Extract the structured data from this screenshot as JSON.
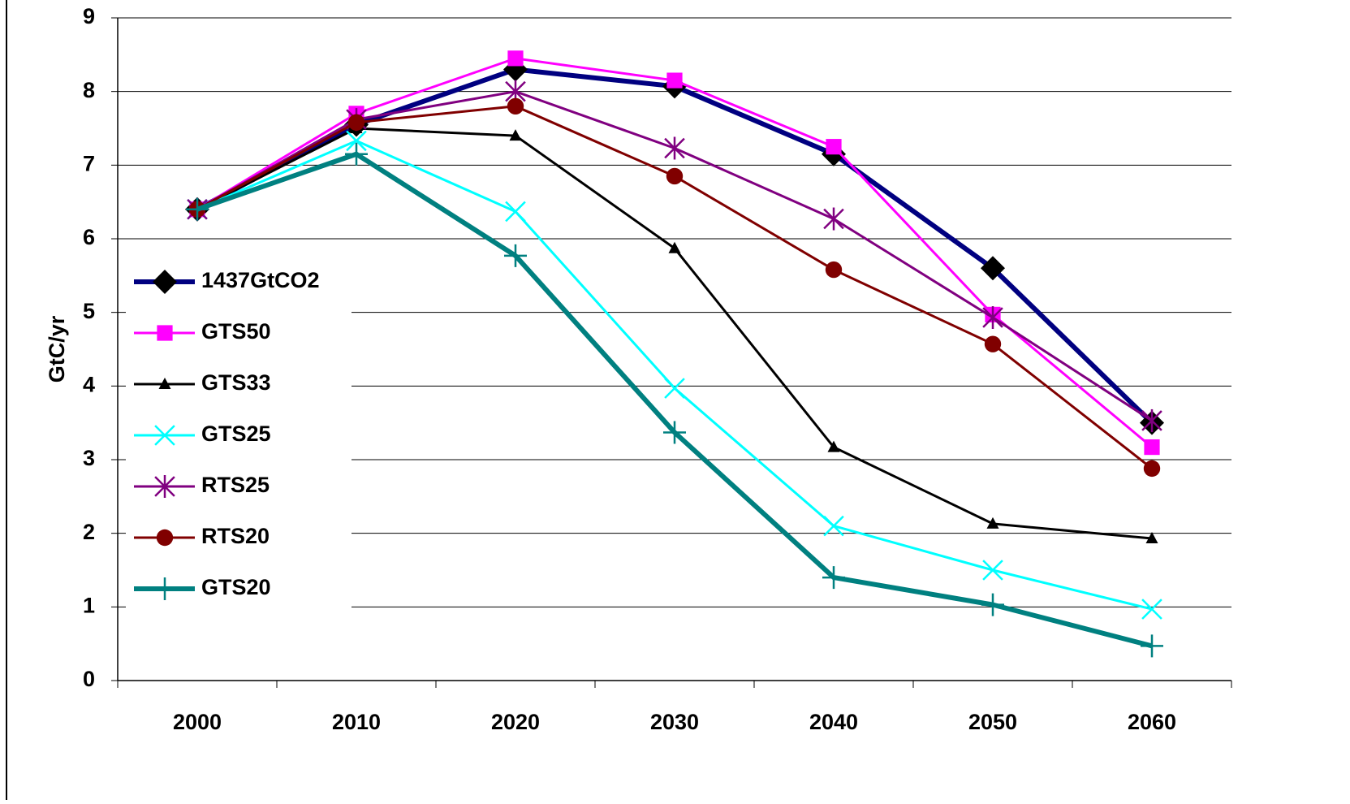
{
  "chart_data": {
    "type": "line",
    "y_label": "GtC/yr",
    "categories": [
      "2000",
      "2010",
      "2020",
      "2030",
      "2040",
      "2050",
      "2060"
    ],
    "ylim": [
      0,
      9
    ],
    "yticks": [
      0,
      1,
      2,
      3,
      4,
      5,
      6,
      7,
      8,
      9
    ],
    "grid": true,
    "legend": "left",
    "series": [
      {
        "name": "1437GtCO2",
        "color": "#000080",
        "marker": "diamond",
        "values": [
          6.4,
          7.55,
          8.3,
          8.07,
          7.15,
          5.6,
          3.5
        ]
      },
      {
        "name": "GTS50",
        "color": "#ff00ff",
        "marker": "square",
        "values": [
          6.4,
          7.7,
          8.45,
          8.15,
          7.25,
          4.97,
          3.17
        ]
      },
      {
        "name": "GTS33",
        "color": "#000000",
        "marker": "triangle",
        "values": [
          6.4,
          7.5,
          7.4,
          5.87,
          3.17,
          2.13,
          1.93
        ]
      },
      {
        "name": "GTS25",
        "color": "#00ffff",
        "marker": "x",
        "values": [
          6.4,
          7.33,
          6.37,
          3.97,
          2.1,
          1.5,
          0.97
        ]
      },
      {
        "name": "RTS25",
        "color": "#800080",
        "marker": "star",
        "values": [
          6.4,
          7.62,
          8.0,
          7.23,
          6.27,
          4.93,
          3.53
        ]
      },
      {
        "name": "RTS20",
        "color": "#800000",
        "marker": "circle",
        "values": [
          6.4,
          7.58,
          7.8,
          6.85,
          5.58,
          4.57,
          2.88
        ]
      },
      {
        "name": "GTS20",
        "color": "#008080",
        "marker": "plus",
        "values": [
          6.4,
          7.15,
          5.77,
          3.37,
          1.4,
          1.03,
          0.47
        ]
      }
    ]
  }
}
